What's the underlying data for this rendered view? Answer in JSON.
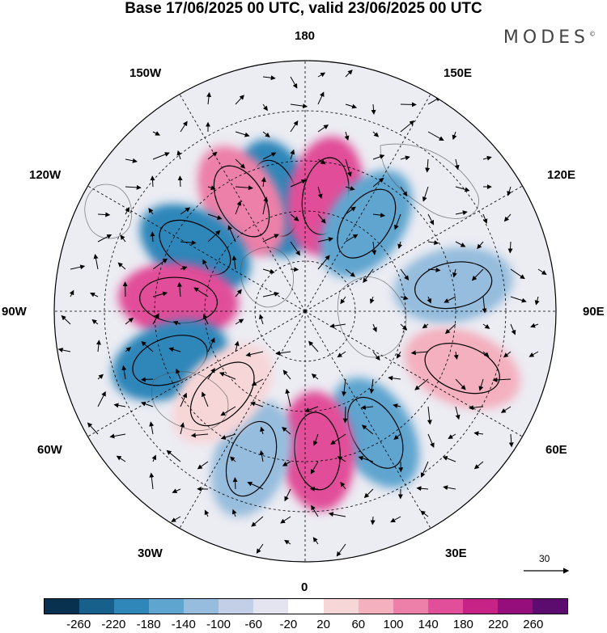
{
  "header": {
    "title": "Base 17/06/2025 00 UTC, valid 23/06/2025 00 UTC",
    "brand": "MODES"
  },
  "map": {
    "projection": "north-polar-stereographic",
    "longitude_labels": {
      "top": "180",
      "bottom": "0",
      "left": "90W",
      "right": "90E",
      "upper_left_1": "150W",
      "upper_left_2": "120W",
      "upper_right_1": "150E",
      "upper_right_2": "120E",
      "lower_left_1": "60W",
      "lower_left_2": "30W",
      "lower_right_1": "60E",
      "lower_right_2": "30E"
    },
    "reference_vector_label": "30",
    "colorbar": {
      "colors": [
        "#08304f",
        "#17608c",
        "#2f86b9",
        "#5ea5cf",
        "#96bddd",
        "#c3cfe6",
        "#e4e4f1",
        "#ffffff",
        "#f7d6d8",
        "#f4b0bf",
        "#ec80a8",
        "#e14e99",
        "#c72286",
        "#960d7c",
        "#5b0c6e"
      ],
      "tick_labels": [
        "-260",
        "-220",
        "-180",
        "-140",
        "-100",
        "-60",
        "-20",
        "20",
        "60",
        "100",
        "140",
        "180",
        "220",
        "260"
      ]
    },
    "anomalies": [
      {
        "lon": -165,
        "lat": 55,
        "value": -220
      },
      {
        "lon": -150,
        "lat": 52,
        "value": 200
      },
      {
        "lon": -120,
        "lat": 52,
        "value": -240
      },
      {
        "lon": -95,
        "lat": 52,
        "value": 250
      },
      {
        "lon": -70,
        "lat": 47,
        "value": -220
      },
      {
        "lon": 170,
        "lat": 55,
        "value": 240
      },
      {
        "lon": 145,
        "lat": 58,
        "value": -180
      },
      {
        "lon": 100,
        "lat": 45,
        "value": -140
      },
      {
        "lon": 70,
        "lat": 40,
        "value": 150
      },
      {
        "lon": 30,
        "lat": 48,
        "value": -180
      },
      {
        "lon": 5,
        "lat": 48,
        "value": 220
      },
      {
        "lon": -20,
        "lat": 43,
        "value": -110
      },
      {
        "lon": -45,
        "lat": 55,
        "value": 100
      }
    ]
  }
}
